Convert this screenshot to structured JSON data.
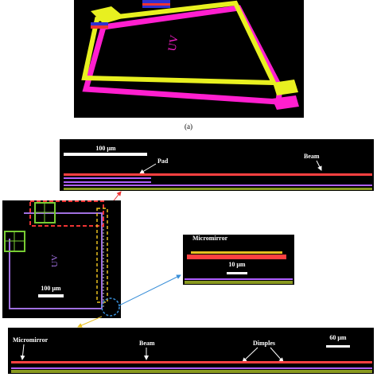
{
  "panel_a": {
    "image_text": "UV",
    "caption": "(a)"
  },
  "panel_b_top": {
    "scale_bar": "100 μm",
    "pad_label": "Pad",
    "beam_label": "Beam"
  },
  "panel_b_overview": {
    "image_text": "UV",
    "scale_bar": "100 μm"
  },
  "panel_b_mirror": {
    "mirror_label": "Micromirror",
    "scale_bar": "10 μm"
  },
  "panel_b_bottom": {
    "mirror_label": "Micromirror",
    "beam_label": "Beam",
    "dimples_label": "Dimples",
    "scale_bar": "60 μm"
  }
}
